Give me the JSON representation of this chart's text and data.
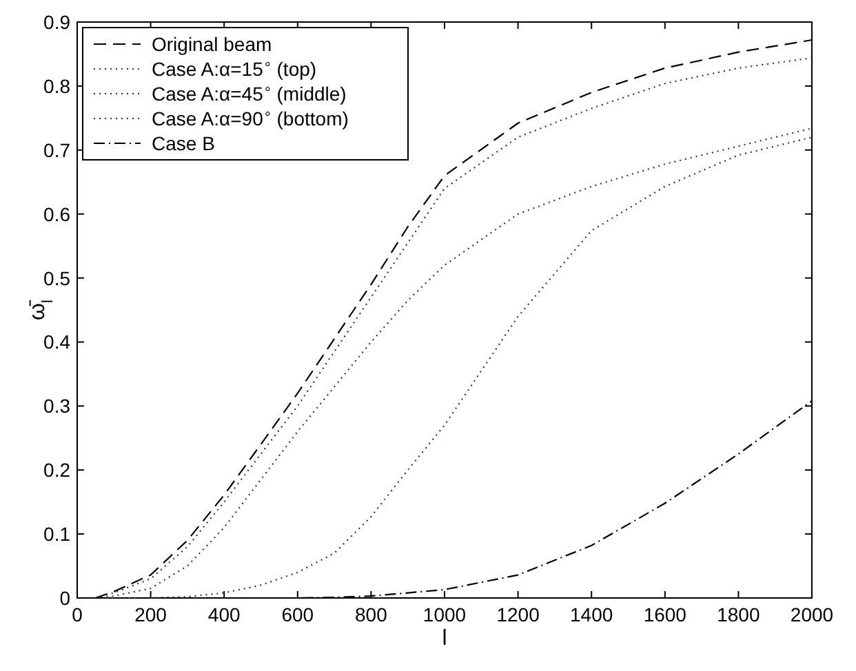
{
  "chart_data": {
    "type": "line",
    "xlabel": "l",
    "ylabel": "ω̄$_{l}$",
    "x": [
      50,
      100,
      200,
      300,
      400,
      500,
      600,
      700,
      800,
      900,
      1000,
      1200,
      1400,
      1600,
      1800,
      2000
    ],
    "series": [
      {
        "name": "Original beam",
        "color": "#000000",
        "line_style": "dashed",
        "values": [
          0,
          0.01,
          0.036,
          0.09,
          0.161,
          0.24,
          0.32,
          0.405,
          0.49,
          0.58,
          0.66,
          0.742,
          0.79,
          0.828,
          0.853,
          0.872
        ]
      },
      {
        "name": "Case A:α=15$^{∘}$ (top)",
        "color": "#333333",
        "line_style": "dotted",
        "values": [
          0,
          0.008,
          0.03,
          0.08,
          0.15,
          0.225,
          0.3,
          0.385,
          0.47,
          0.555,
          0.64,
          0.72,
          0.765,
          0.804,
          0.828,
          0.844
        ]
      },
      {
        "name": "Case A:α=45$^{∘}$ (middle)",
        "color": "#333333",
        "line_style": "dotted",
        "values": [
          0,
          0.003,
          0.015,
          0.05,
          0.11,
          0.185,
          0.26,
          0.33,
          0.4,
          0.465,
          0.52,
          0.6,
          0.643,
          0.678,
          0.706,
          0.734
        ]
      },
      {
        "name": "Case A:α=90$^{∘}$ (bottom)",
        "color": "#333333",
        "line_style": "dotted",
        "values": [
          0,
          0,
          0,
          0.002,
          0.008,
          0.02,
          0.04,
          0.07,
          0.127,
          0.2,
          0.27,
          0.44,
          0.574,
          0.643,
          0.692,
          0.72
        ]
      },
      {
        "name": "Case B",
        "color": "#000000",
        "line_style": "dashdot",
        "values": [
          0,
          0,
          0,
          0,
          0,
          0,
          0,
          0.001,
          0.003,
          0.008,
          0.013,
          0.036,
          0.082,
          0.148,
          0.225,
          0.308
        ]
      }
    ],
    "xlim": [
      0,
      2000
    ],
    "xticks": [
      0,
      200,
      400,
      600,
      800,
      1000,
      1200,
      1400,
      1600,
      1800,
      2000
    ],
    "ylim": [
      0,
      0.9
    ],
    "yticks": [
      0,
      0.1,
      0.2,
      0.3,
      0.4,
      0.5,
      0.6,
      0.7,
      0.8,
      0.9
    ],
    "grid": false,
    "legend": "top left"
  }
}
